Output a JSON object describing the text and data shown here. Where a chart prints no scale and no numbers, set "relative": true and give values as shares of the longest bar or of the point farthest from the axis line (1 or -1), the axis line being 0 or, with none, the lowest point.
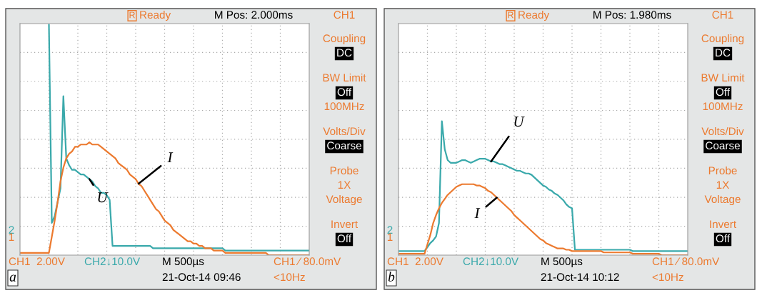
{
  "chart_data": [
    {
      "type": "line",
      "relative": true,
      "grid": true,
      "categories": [
        null,
        null,
        null,
        null,
        null,
        null,
        null,
        null,
        null,
        null,
        null,
        null,
        null,
        null,
        null,
        null,
        null,
        null,
        null,
        null,
        null,
        null,
        null,
        null,
        null,
        null,
        null,
        null,
        null,
        null,
        null,
        null,
        null,
        null,
        null,
        null,
        null,
        null,
        null,
        null,
        null,
        null,
        null,
        null,
        null,
        null,
        null,
        null,
        null,
        null,
        null,
        null,
        null,
        null,
        null,
        null,
        null,
        null,
        null,
        null,
        null,
        null,
        null,
        null,
        null,
        null,
        null,
        null,
        null,
        null,
        null,
        null,
        null,
        null,
        null,
        null,
        null,
        null,
        null,
        null,
        null,
        null,
        null,
        null,
        null,
        null,
        null,
        null,
        null,
        null,
        null,
        null,
        null,
        null,
        null,
        null,
        null,
        null,
        null,
        null,
        null
      ],
      "series": [
        {
          "name": "U",
          "color": "#3aa9ab",
          "values": [
            null,
            null,
            null,
            null,
            null,
            null,
            null,
            null,
            null,
            null,
            1.0,
            0.14,
            0.17,
            0.23,
            0.29,
            0.69,
            0.42,
            0.39,
            0.37,
            0.37,
            0.36,
            0.35,
            0.35,
            0.34,
            0.33,
            0.32,
            0.3,
            0.29,
            0.27,
            0.27,
            0.26,
            0.24,
            0.04,
            0.04,
            0.04,
            0.04,
            0.04,
            0.04,
            0.04,
            0.04,
            0.04,
            0.04,
            0.04,
            0.04,
            0.04,
            0.04,
            0.03,
            0.03,
            0.03,
            0.03,
            0.03,
            0.03,
            0.03,
            0.03,
            0.03,
            0.03,
            0.03,
            0.03,
            0.03,
            0.03,
            0.03,
            0.03,
            0.03,
            0.03,
            0.03,
            0.03,
            0.03,
            0.03,
            0.03,
            0.03,
            0.03,
            0.02,
            0.02,
            0.02,
            0.02,
            0.02,
            0.02,
            0.02,
            0.02,
            0.02,
            0.02,
            0.02,
            0.02,
            0.02,
            0.02,
            0.02,
            0.02,
            0.02,
            0.02,
            0.02,
            0.02,
            0.02,
            0.02,
            0.02,
            0.02,
            0.02,
            0.02,
            0.02,
            0.02,
            0.02,
            0.02
          ]
        },
        {
          "name": "I",
          "color": "#ec7a2f",
          "values": [
            0.01,
            0.01,
            0.01,
            0.01,
            0.01,
            0.01,
            0.01,
            0.01,
            0.01,
            0.01,
            0.01,
            0.08,
            0.15,
            0.23,
            0.32,
            0.38,
            0.42,
            0.44,
            0.45,
            0.47,
            0.47,
            0.48,
            0.48,
            0.48,
            0.49,
            0.48,
            0.48,
            0.48,
            0.47,
            0.46,
            0.45,
            0.44,
            0.43,
            0.42,
            0.4,
            0.39,
            0.38,
            0.37,
            0.35,
            0.34,
            0.33,
            0.31,
            0.3,
            0.28,
            0.26,
            0.24,
            0.22,
            0.2,
            0.19,
            0.17,
            0.15,
            0.14,
            0.13,
            0.11,
            0.1,
            0.09,
            0.08,
            0.07,
            0.06,
            0.06,
            0.05,
            0.05,
            0.04,
            0.04,
            0.03,
            0.03,
            0.03,
            0.02,
            0.02,
            0.02,
            0.02,
            0.01,
            0.01,
            0.01,
            0.01,
            0.01,
            0.01,
            0.01,
            0.01,
            0.01,
            0.01,
            0.01,
            0.01,
            0.01,
            0.01,
            0.01,
            0,
            0,
            0,
            0,
            0,
            0,
            0,
            0,
            0,
            0,
            0,
            0,
            0,
            0,
            0
          ]
        }
      ],
      "annotations": [
        "R",
        "Ready",
        "M Pos: 2.000ms",
        "CH1",
        "Coupling",
        "DC",
        "BW Limit",
        "Off",
        "100MHz",
        "Volts/Div",
        "Coarse",
        "Probe",
        "1X",
        "Voltage",
        "Invert",
        "Off",
        "CH1  2.00V",
        "CH2↓10.0V",
        "M 500µs",
        "21-Oct-14 09:46",
        "CH1 ⁄ 80.0mV",
        "<10Hz",
        "a",
        "2",
        "1"
      ]
    },
    {
      "type": "line",
      "relative": true,
      "grid": true,
      "categories": [
        null,
        null,
        null,
        null,
        null,
        null,
        null,
        null,
        null,
        null,
        null,
        null,
        null,
        null,
        null,
        null,
        null,
        null,
        null,
        null,
        null,
        null,
        null,
        null,
        null,
        null,
        null,
        null,
        null,
        null,
        null,
        null,
        null,
        null,
        null,
        null,
        null,
        null,
        null,
        null,
        null,
        null,
        null,
        null,
        null,
        null,
        null,
        null,
        null,
        null,
        null,
        null,
        null,
        null,
        null,
        null,
        null,
        null,
        null,
        null,
        null,
        null,
        null,
        null,
        null,
        null,
        null,
        null,
        null,
        null,
        null,
        null,
        null,
        null,
        null,
        null,
        null,
        null,
        null,
        null,
        null,
        null,
        null,
        null,
        null,
        null,
        null,
        null,
        null,
        null,
        null,
        null,
        null,
        null,
        null,
        null,
        null,
        null,
        null,
        null,
        null
      ],
      "series": [
        {
          "name": "U",
          "color": "#3aa9ab",
          "values": [
            0.03,
            0.03,
            0.03,
            0.03,
            0.03,
            0.03,
            0.03,
            0.03,
            0.03,
            0.03,
            0.06,
            0.09,
            0.11,
            0.14,
            0.24,
            1.0,
            0.79,
            0.71,
            0.69,
            0.69,
            0.69,
            0.7,
            0.71,
            0.71,
            0.7,
            0.69,
            0.7,
            0.71,
            0.72,
            0.72,
            0.72,
            0.71,
            0.7,
            0.7,
            0.69,
            0.68,
            0.68,
            0.67,
            0.66,
            0.65,
            0.64,
            0.63,
            0.63,
            0.62,
            0.61,
            0.61,
            0.6,
            0.58,
            0.56,
            0.54,
            0.52,
            0.51,
            0.49,
            0.48,
            0.46,
            0.45,
            0.43,
            0.41,
            0.38,
            0.36,
            0.35,
            0.04,
            0.04,
            0.04,
            0.04,
            0.04,
            0.04,
            0.04,
            0.04,
            0.04,
            0.04,
            0.04,
            0.04,
            0.04,
            0.04,
            0.04,
            0.04,
            0.04,
            0.04,
            0.04,
            0.04,
            0.03,
            0.03,
            0.03,
            0.03,
            0.03,
            0.03,
            0.03,
            0.03,
            0.03,
            0.03,
            0.03,
            0.03,
            0.03,
            0.03,
            0.03,
            0.03,
            0.03,
            0.03,
            0.03,
            0.03
          ]
        },
        {
          "name": "I",
          "color": "#ec7a2f",
          "values": [
            0.01,
            0.01,
            0.01,
            0.01,
            0.01,
            0.01,
            0.01,
            0.01,
            0.01,
            0.01,
            0.08,
            0.15,
            0.24,
            0.3,
            0.35,
            0.39,
            0.42,
            0.45,
            0.47,
            0.49,
            0.51,
            0.52,
            0.53,
            0.53,
            0.53,
            0.53,
            0.53,
            0.52,
            0.52,
            0.51,
            0.5,
            0.48,
            0.47,
            0.45,
            0.43,
            0.41,
            0.39,
            0.37,
            0.35,
            0.33,
            0.3,
            0.28,
            0.26,
            0.24,
            0.22,
            0.2,
            0.18,
            0.16,
            0.14,
            0.12,
            0.11,
            0.09,
            0.08,
            0.07,
            0.06,
            0.05,
            0.05,
            0.05,
            0.04,
            0.04,
            0.03,
            0.03,
            0.03,
            0.03,
            0.03,
            0.03,
            0.03,
            0.03,
            0.03,
            0.03,
            0.03,
            0.02,
            0.02,
            0.02,
            0.02,
            0.02,
            0.02,
            0.02,
            0.02,
            0.02,
            0.02,
            0.01,
            0.01,
            0.01,
            0.01,
            0.01,
            0.01,
            0.01,
            0.01,
            0.01,
            0.01,
            0,
            0,
            0,
            0,
            0,
            0,
            0,
            0,
            0,
            0
          ]
        }
      ],
      "annotations": [
        "R",
        "Ready",
        "M Pos: 1.980ms",
        "CH1",
        "Coupling",
        "DC",
        "BW Limit",
        "Off",
        "100MHz",
        "Volts/Div",
        "Coarse",
        "Probe",
        "1X",
        "Voltage",
        "Invert",
        "Off",
        "CH1  2.00V",
        "CH2↓10.0V",
        "M 500µs",
        "21-Oct-14 10:12",
        "CH1 ⁄ 80.0mV",
        "<10Hz",
        "b",
        "2",
        "1"
      ]
    }
  ]
}
